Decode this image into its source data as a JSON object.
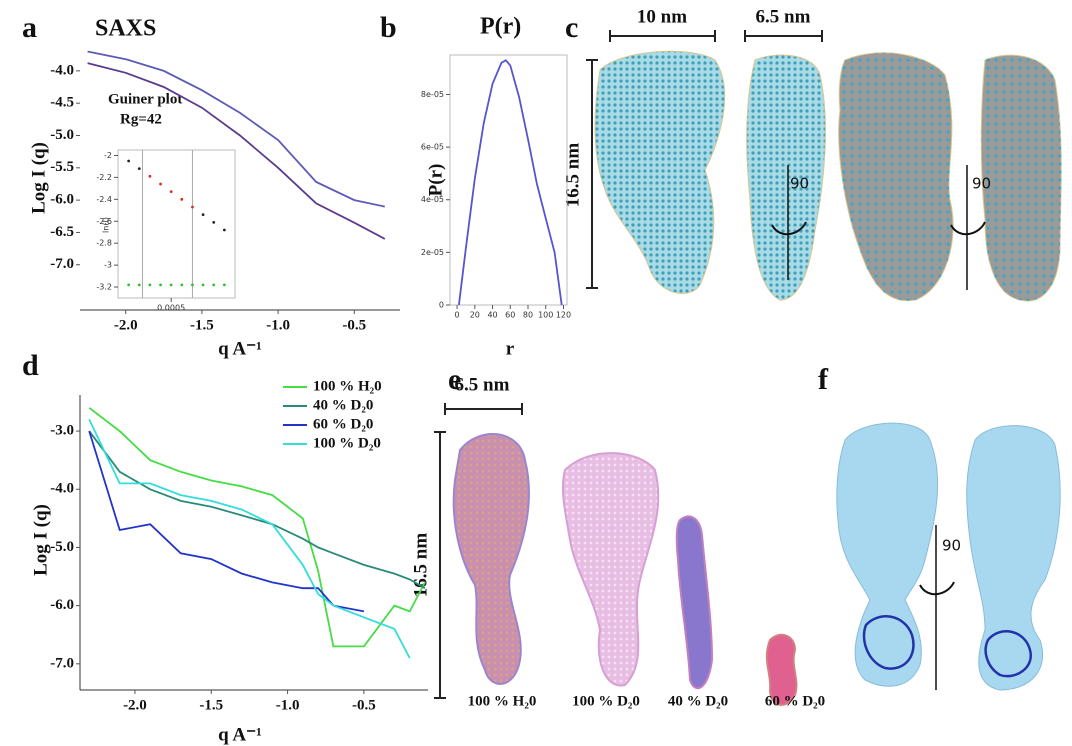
{
  "panel_labels": [
    "a",
    "b",
    "c",
    "d",
    "e",
    "f"
  ],
  "chart_data": [
    {
      "type": "line",
      "title": "SAXS",
      "xlabel": "q A⁻¹",
      "ylabel": "Log I (q)",
      "annotations": [
        "Guiner plot",
        "Rg=42"
      ],
      "xlim": [
        -2.3,
        -0.2
      ],
      "ylim": [
        -7.7,
        -3.6
      ],
      "xticks": [
        {
          "value": -2,
          "label": "-2.0"
        },
        {
          "value": -1.5,
          "label": "-1.5"
        },
        {
          "value": -1,
          "label": "-1.0"
        },
        {
          "value": -0.5,
          "label": "-0.5"
        }
      ],
      "yticks": [
        {
          "value": -4,
          "label": "-4.0"
        },
        {
          "value": -4.5,
          "label": "-4.5"
        },
        {
          "value": -5,
          "label": "-5.0"
        },
        {
          "value": -5.5,
          "label": "-5.5"
        },
        {
          "value": -6,
          "label": "-6.0"
        },
        {
          "value": -6.5,
          "label": "-6.5"
        },
        {
          "value": -7,
          "label": "-7.0"
        }
      ],
      "x": [
        -2.25,
        -2.0,
        -1.75,
        -1.5,
        -1.25,
        -1.0,
        -0.75,
        -0.5,
        -0.3
      ],
      "series": [
        {
          "color": "#5b5bb8",
          "values": [
            -3.7,
            -3.82,
            -4.0,
            -4.3,
            -4.65,
            -5.07,
            -5.72,
            -6.0,
            -6.1
          ]
        },
        {
          "color": "#5a3b8c",
          "values": [
            -3.88,
            -4.03,
            -4.25,
            -4.57,
            -5.0,
            -5.5,
            -6.05,
            -6.35,
            -6.6
          ]
        }
      ]
    },
    {
      "type": "scatter",
      "ylabel": "ln(I)",
      "xlim": [
        0,
        0.0011
      ],
      "ylim": [
        -3.3,
        -1.95
      ],
      "xticks": [
        0.0005
      ],
      "yticks": [
        -2,
        -2.2,
        -2.4,
        -2.6,
        -2.8,
        -3,
        -3.2
      ],
      "vlines": [
        0.00023,
        0.0007
      ],
      "x": [
        0.0001,
        0.0002,
        0.0003,
        0.0004,
        0.0005,
        0.0006,
        0.0007,
        0.0008,
        0.0009,
        0.001
      ],
      "series": [
        {
          "color": "#222222",
          "values": [
            -2.05,
            -2.12,
            null,
            null,
            null,
            null,
            null,
            -2.54,
            -2.61,
            -2.68
          ]
        },
        {
          "color": "#d03020",
          "values": [
            null,
            null,
            -2.19,
            -2.26,
            -2.33,
            -2.4,
            -2.47,
            null,
            null,
            null
          ]
        },
        {
          "color": "#30c030",
          "values": [
            -3.18,
            -3.18,
            -3.18,
            -3.18,
            -3.18,
            -3.18,
            -3.18,
            -3.18,
            -3.18,
            -3.18
          ]
        }
      ]
    },
    {
      "type": "line",
      "title": "P(r)",
      "xlabel": "r",
      "ylabel": "P(r)",
      "xlim": [
        -8,
        124
      ],
      "ylim": [
        0,
        9.5e-05
      ],
      "xticks": [
        0,
        20,
        40,
        60,
        80,
        100,
        120
      ],
      "yticks": [
        0,
        {
          "value": 2e-05,
          "label": "2e-05"
        },
        {
          "value": 4e-05,
          "label": "4e-05"
        },
        {
          "value": 6e-05,
          "label": "6e-05"
        },
        {
          "value": 8e-05,
          "label": "8e-05"
        }
      ],
      "x": [
        2,
        10,
        20,
        30,
        40,
        50,
        55,
        60,
        70,
        80,
        90,
        100,
        110,
        118
      ],
      "series": [
        {
          "color": "#5555cc",
          "values": [
            0,
            2.2e-05,
            4.8e-05,
            6.9e-05,
            8.4e-05,
            9.2e-05,
            9.3e-05,
            9.1e-05,
            7.9e-05,
            6.3e-05,
            4.6e-05,
            3.3e-05,
            2e-05,
            0
          ]
        }
      ]
    },
    {
      "type": "line",
      "xlabel": "q A⁻¹",
      "ylabel": "Log I (q)",
      "legend": "upper right",
      "xlim": [
        -2.36,
        -0.08
      ],
      "ylim": [
        -7.45,
        -2.38
      ],
      "xticks": [
        {
          "value": -2,
          "label": "-2.0"
        },
        {
          "value": -1.5,
          "label": "-1.5"
        },
        {
          "value": -1,
          "label": "-1.0"
        },
        {
          "value": -0.5,
          "label": "-0.5"
        }
      ],
      "yticks": [
        {
          "value": -3,
          "label": "-3.0"
        },
        {
          "value": -4,
          "label": "-4.0"
        },
        {
          "value": -5,
          "label": "-5.0"
        },
        {
          "value": -6,
          "label": "-6.0"
        },
        {
          "value": -7,
          "label": "-7.0"
        }
      ],
      "x": [
        -2.3,
        -2.1,
        -1.9,
        -1.7,
        -1.5,
        -1.3,
        -1.1,
        -0.9,
        -0.8,
        -0.7,
        -0.5,
        -0.3,
        -0.2,
        -0.1
      ],
      "series": [
        {
          "name": "100 % H₂0",
          "color": "#44dd44",
          "values": [
            -2.6,
            -3.0,
            -3.5,
            -3.7,
            -3.85,
            -3.95,
            -4.1,
            -4.5,
            -5.4,
            -6.7,
            -6.7,
            -6.0,
            -6.1,
            -5.6
          ]
        },
        {
          "name": "40 % D₂0",
          "color": "#2a8a78",
          "values": [
            -3.0,
            -3.7,
            -4.0,
            -4.2,
            -4.3,
            -4.45,
            -4.6,
            -4.85,
            -5.0,
            -5.1,
            -5.3,
            -5.45,
            -5.55,
            -5.7
          ]
        },
        {
          "name": "60 % D₂0",
          "color": "#2233cc",
          "values": [
            -3.0,
            -4.7,
            -4.6,
            -5.1,
            -5.2,
            -5.45,
            -5.6,
            -5.7,
            -5.7,
            -6.0,
            -6.1,
            null,
            null,
            null
          ]
        },
        {
          "name": "100 % D₂0",
          "color": "#33dddd",
          "values": [
            -2.8,
            -3.9,
            -3.9,
            -4.1,
            -4.2,
            -4.35,
            -4.6,
            -5.3,
            -5.8,
            -6.0,
            -6.2,
            -6.4,
            -6.9,
            null
          ]
        }
      ]
    }
  ],
  "panel_c": {
    "scale_bars": [
      "10 nm",
      "6.5 nm",
      "16.5 nm"
    ],
    "rotation": [
      "90",
      "90"
    ]
  },
  "panel_e": {
    "scale_bars": [
      "6.5 nm",
      "16.5 nm"
    ],
    "labels": [
      "100 % H₂0",
      "100 % D₂0",
      "40 % D₂0",
      "60 % D₂0"
    ]
  },
  "panel_f": {
    "rotation": "90"
  }
}
